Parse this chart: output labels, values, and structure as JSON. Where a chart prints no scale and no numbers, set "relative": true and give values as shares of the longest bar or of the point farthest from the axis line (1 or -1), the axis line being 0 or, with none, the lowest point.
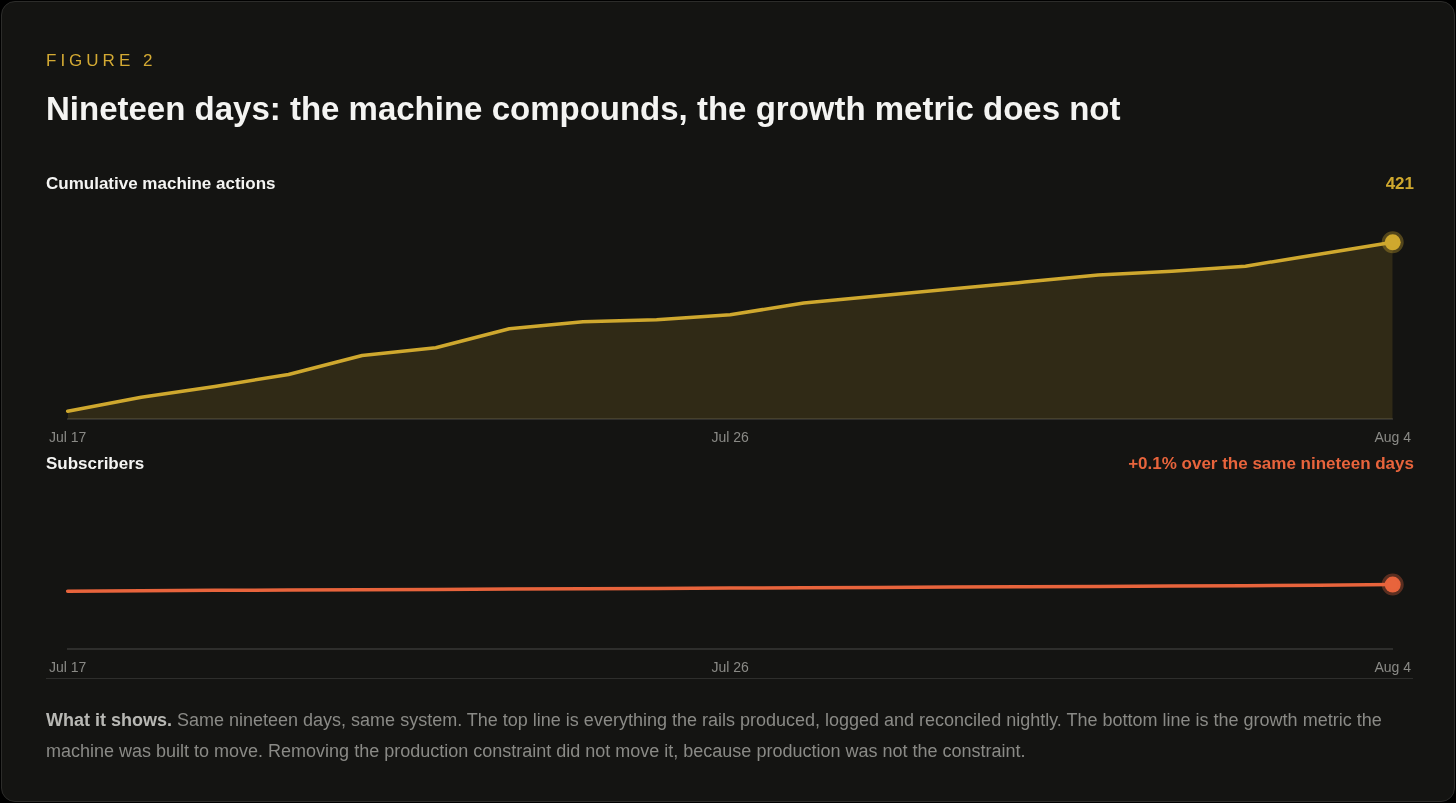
{
  "chart_data": [
    {
      "type": "other",
      "subtitle": "FIGURE 2",
      "title": "Nineteen days: the machine compounds, the growth metric does not"
    },
    {
      "type": "area",
      "title": "Cumulative machine actions",
      "relative": true,
      "annotations": [
        "421"
      ],
      "categories": [
        "Jul 17",
        null,
        null,
        null,
        null,
        null,
        null,
        null,
        null,
        "Jul 26",
        null,
        null,
        null,
        null,
        null,
        null,
        null,
        null,
        "Aug 4"
      ],
      "series": [
        {
          "color": "#cfa82e",
          "values": [
            0.045,
            0.124,
            0.185,
            0.253,
            0.36,
            0.404,
            0.511,
            0.551,
            0.562,
            0.59,
            0.657,
            0.697,
            0.736,
            0.775,
            0.815,
            0.837,
            0.865,
            0.933,
            1
          ]
        }
      ]
    },
    {
      "type": "line",
      "title": "Subscribers",
      "relative": true,
      "annotations": [
        "+0.1% over the same nineteen days",
        "What it shows.",
        "Same nineteen days, same system. The top line is everything the rails produced, logged and reconciled nightly. The bottom line is the growth metric the machine was built to move. Removing the production constraint did not move it, because production was not the constraint."
      ],
      "categories": [
        "Jul 17",
        null,
        null,
        null,
        null,
        null,
        null,
        null,
        null,
        "Jul 26",
        null,
        null,
        null,
        null,
        null,
        null,
        null,
        null,
        "Aug 4"
      ],
      "series": [
        {
          "color": "#e8643c",
          "values": [
            0.898,
            0.903,
            0.91,
            0.915,
            0.92,
            0.925,
            0.93,
            0.935,
            0.94,
            0.945,
            0.95,
            0.955,
            0.96,
            0.965,
            0.97,
            0.976,
            0.983,
            0.99,
            1
          ]
        }
      ]
    }
  ]
}
